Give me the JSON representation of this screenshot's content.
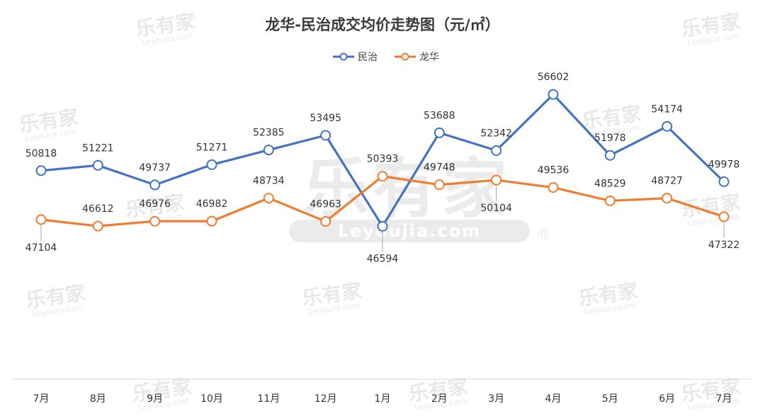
{
  "chart_data": {
    "type": "line",
    "title": "龙华-民治成交均价走势图（元/㎡）",
    "categories": [
      "7月",
      "8月",
      "9月",
      "10月",
      "11月",
      "12月",
      "1月",
      "2月",
      "3月",
      "4月",
      "5月",
      "6月",
      "7月"
    ],
    "series": [
      {
        "name": "民治",
        "color": "#4472C4",
        "values": [
          50818,
          51221,
          49737,
          51271,
          52385,
          53495,
          46594,
          53688,
          52342,
          56602,
          51978,
          54174,
          49978
        ]
      },
      {
        "name": "龙华",
        "color": "#ED7D31",
        "values": [
          47104,
          46612,
          46976,
          46982,
          48734,
          46963,
          50393,
          49748,
          50104,
          49536,
          48529,
          48727,
          47322
        ]
      }
    ],
    "ylim": [
      35000,
      60000
    ],
    "legend_position": "top",
    "grid": false
  },
  "watermark": {
    "brand": "乐有家",
    "domain": "Leyoujia.com",
    "mark": "®"
  }
}
